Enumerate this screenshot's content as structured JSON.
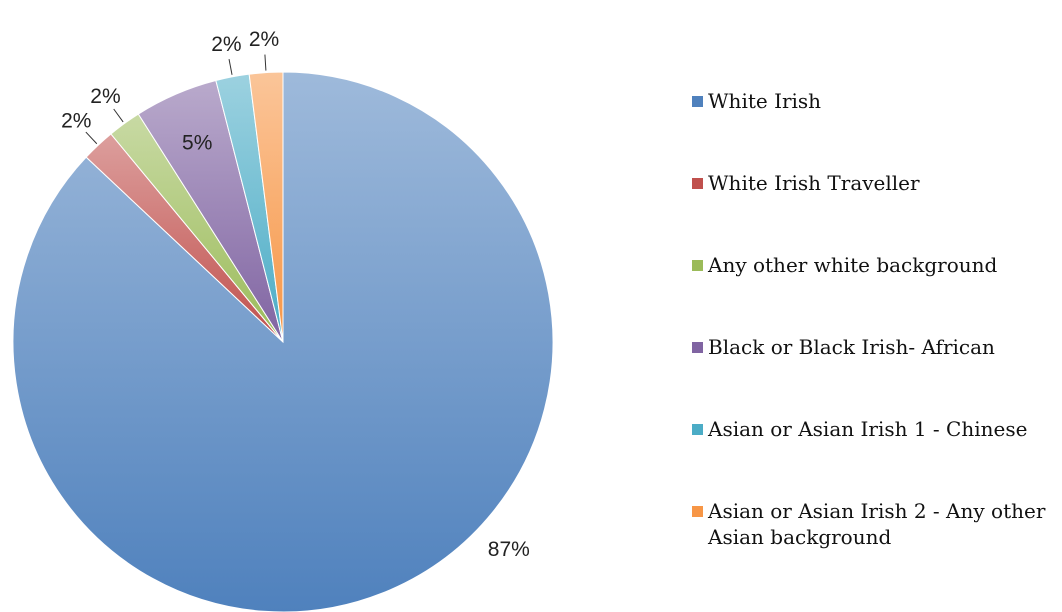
{
  "chart_data": {
    "type": "pie",
    "categories": [
      "White Irish",
      "White Irish Traveller",
      "Any other white background",
      "Black or Black Irish- African",
      "Asian or Asian Irish 1 - Chinese",
      "Asian or Asian Irish 2 - Any other Asian background"
    ],
    "values": [
      87,
      2,
      2,
      5,
      2,
      2
    ],
    "value_labels": [
      "87%",
      "2%",
      "2%",
      "5%",
      "2%",
      "2%"
    ],
    "colors": [
      "#4f81bd",
      "#c0504d",
      "#9bbb59",
      "#8064a2",
      "#4bacc6",
      "#f79646"
    ]
  }
}
